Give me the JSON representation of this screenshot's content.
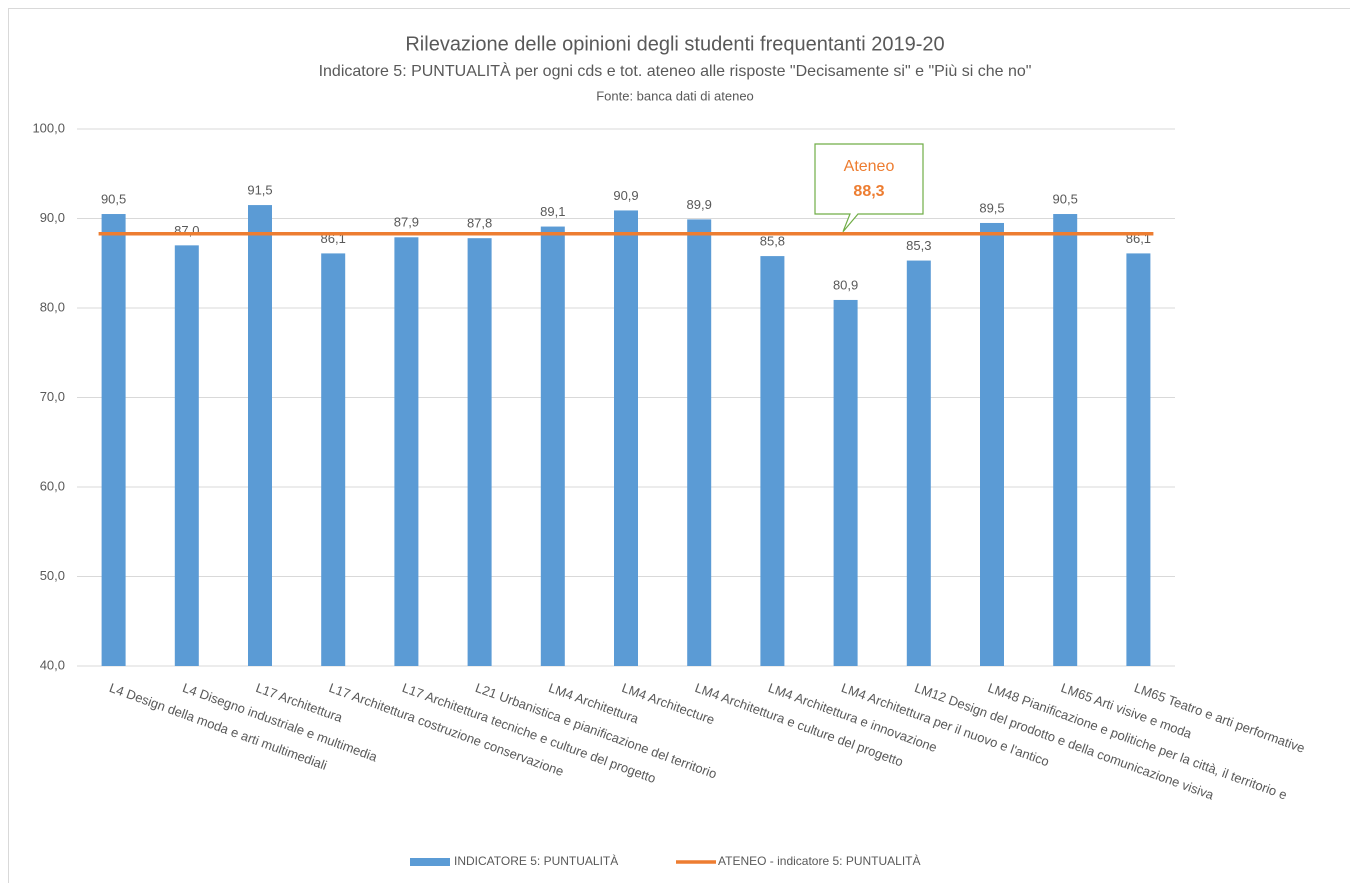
{
  "chart_data": {
    "type": "bar",
    "title": "Rilevazione delle opinioni degli studenti frequentanti 2019-20",
    "subtitle": "Indicatore 5: PUNTUALITÀ per ogni cds e tot. ateneo alle risposte \"Decisamente si\" e \"Più si che no\"",
    "source": "Fonte: banca dati di ateneo",
    "categories": [
      "L4 Design della moda e arti multimediali",
      "L4 Disegno industriale e multimedia",
      "L17 Architettura",
      "L17 Architettura costruzione conservazione",
      "L17 Architettura tecniche e culture del progetto",
      "L21 Urbanistica e pianificazione del territorio",
      "LM4 Architettura",
      "LM4 Architecture",
      "LM4 Architettura e culture del progetto",
      "LM4 Architettura e innovazione",
      "LM4 Architettura per il nuovo e l'antico",
      "LM12 Design del prodotto e della comunicazione visiva",
      "LM48 Pianificazione e politiche per la città, il territorio e",
      "LM65 Arti visive e moda",
      "LM65 Teatro e arti performative"
    ],
    "series": [
      {
        "name": "INDICATORE 5: PUNTUALITÀ",
        "type": "bar",
        "color": "#5b9bd5",
        "values": [
          90.5,
          87.0,
          91.5,
          86.1,
          87.9,
          87.8,
          89.1,
          90.9,
          89.9,
          85.8,
          80.9,
          85.3,
          89.5,
          90.5,
          86.1
        ],
        "value_labels": [
          "90,5",
          "87,0",
          "91,5",
          "86,1",
          "87,9",
          "87,8",
          "89,1",
          "90,9",
          "89,9",
          "85,8",
          "80,9",
          "85,3",
          "89,5",
          "90,5",
          "86,1"
        ]
      },
      {
        "name": "ATENEO - indicatore 5: PUNTUALITÀ",
        "type": "line",
        "color": "#ed7d31",
        "values": [
          88.3,
          88.3,
          88.3,
          88.3,
          88.3,
          88.3,
          88.3,
          88.3,
          88.3,
          88.3,
          88.3,
          88.3,
          88.3,
          88.3,
          88.3
        ]
      }
    ],
    "annotation": {
      "text": "Ateneo",
      "value": 88.3,
      "label": "88,3"
    },
    "ylim": [
      40,
      100
    ],
    "yticks": [
      {
        "value": 40,
        "label": "40,0"
      },
      {
        "value": 50,
        "label": "50,0"
      },
      {
        "value": 60,
        "label": "60,0"
      },
      {
        "value": 70,
        "label": "70,0"
      },
      {
        "value": 80,
        "label": "80,0"
      },
      {
        "value": 90,
        "label": "90,0"
      },
      {
        "value": 100,
        "label": "100,0"
      }
    ],
    "grid": true,
    "legend": "bottom"
  }
}
